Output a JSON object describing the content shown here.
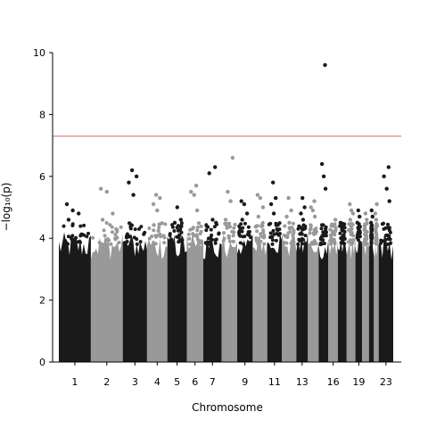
{
  "chart_data": {
    "type": "scatter",
    "subtype": "manhattan",
    "title": "",
    "xlabel": "Chromosome",
    "ylabel": "−log₁₀(p)",
    "ylim": [
      0,
      10
    ],
    "yticks": [
      0,
      2,
      4,
      6,
      8,
      10
    ],
    "xtick_labels": [
      "1",
      "2",
      "3",
      "4",
      "5",
      "6",
      "7",
      "9",
      "11",
      "13",
      "16",
      "19",
      "23"
    ],
    "threshold": 7.3,
    "threshold_color": "#e06666",
    "colors": {
      "odd": "#1a1a1a",
      "even": "#999999"
    },
    "grid": false,
    "legend": "none",
    "chromosomes": [
      {
        "chr": "1",
        "top": [
          5.1,
          4.9,
          4.8,
          4.6
        ]
      },
      {
        "chr": "2",
        "top": [
          5.6,
          5.5,
          4.8,
          4.6
        ]
      },
      {
        "chr": "3",
        "top": [
          6.2,
          6.0,
          5.8,
          5.4
        ]
      },
      {
        "chr": "4",
        "top": [
          5.4,
          5.3,
          5.1,
          4.9
        ]
      },
      {
        "chr": "5",
        "top": [
          5.0,
          4.6,
          4.5,
          4.4
        ]
      },
      {
        "chr": "6",
        "top": [
          5.7,
          5.5,
          5.4,
          4.9
        ]
      },
      {
        "chr": "7",
        "top": [
          6.3,
          6.1,
          4.6,
          4.5
        ]
      },
      {
        "chr": "8",
        "top": [
          6.6,
          5.5,
          5.2,
          4.6
        ]
      },
      {
        "chr": "9",
        "top": [
          5.2,
          5.1,
          4.8,
          4.6
        ]
      },
      {
        "chr": "10",
        "top": [
          5.4,
          5.3,
          5.0,
          4.7
        ]
      },
      {
        "chr": "11",
        "top": [
          5.8,
          5.3,
          5.1,
          4.8
        ]
      },
      {
        "chr": "12",
        "top": [
          5.3,
          4.9,
          4.7,
          4.5
        ]
      },
      {
        "chr": "13",
        "top": [
          5.3,
          5.0,
          4.8,
          4.6
        ]
      },
      {
        "chr": "14",
        "top": [
          5.2,
          5.0,
          4.9,
          4.7
        ]
      },
      {
        "chr": "15",
        "top": [
          9.6,
          6.4,
          6.0,
          5.6
        ]
      },
      {
        "chr": "16",
        "top": [
          4.6,
          4.4,
          4.2,
          4.1
        ]
      },
      {
        "chr": "17",
        "top": [
          4.5,
          4.3,
          4.1,
          4.0
        ]
      },
      {
        "chr": "18",
        "top": [
          5.1,
          4.9,
          4.8,
          4.6
        ]
      },
      {
        "chr": "19",
        "top": [
          4.9,
          4.7,
          4.5,
          4.3
        ]
      },
      {
        "chr": "20",
        "top": [
          4.8,
          4.6,
          4.4,
          4.2
        ]
      },
      {
        "chr": "21",
        "top": [
          4.9,
          4.7,
          4.5,
          4.3
        ]
      },
      {
        "chr": "22",
        "top": [
          5.1,
          4.8,
          4.6,
          4.4
        ]
      },
      {
        "chr": "23",
        "top": [
          6.3,
          6.0,
          5.6,
          5.2
        ]
      }
    ]
  }
}
